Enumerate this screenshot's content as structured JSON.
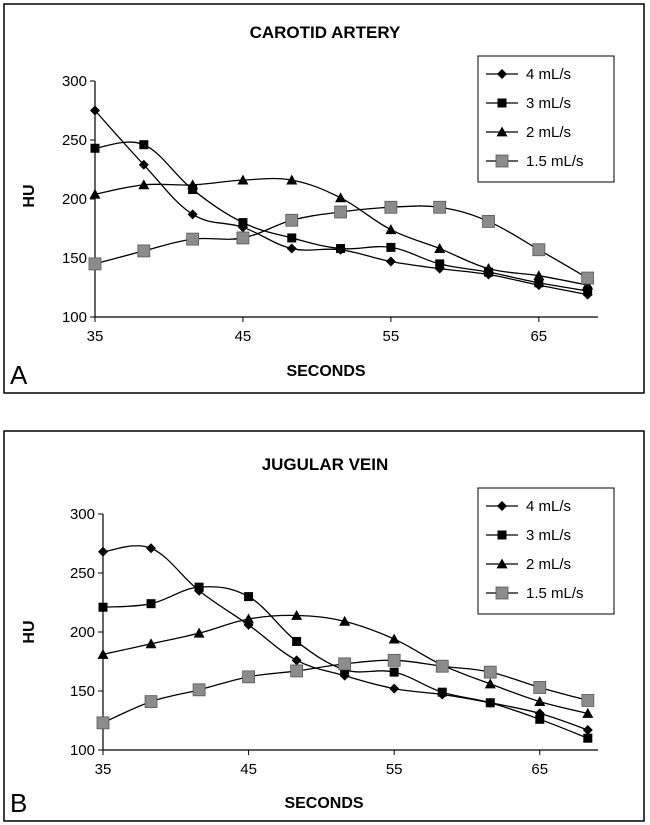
{
  "chart_data": [
    {
      "type": "line",
      "panel": "A",
      "title": "CAROTID ARTERY",
      "xlabel": "SECONDS",
      "ylabel": "HU",
      "xlim": [
        35,
        69
      ],
      "ylim": [
        100,
        300
      ],
      "xticks": [
        35,
        45,
        55,
        65
      ],
      "yticks": [
        100,
        150,
        200,
        250,
        300
      ],
      "legend_position": "top-right",
      "series": [
        {
          "name": "4 mL/s",
          "marker": "diamond",
          "color": "#000000",
          "x": [
            35,
            38.3,
            41.6,
            45,
            48.3,
            51.6,
            55,
            58.3,
            61.6,
            65,
            68.3
          ],
          "y": [
            275,
            229,
            187,
            176,
            158,
            157,
            147,
            141,
            136,
            127,
            119
          ]
        },
        {
          "name": "3 mL/s",
          "marker": "square",
          "color": "#000000",
          "x": [
            35,
            38.3,
            41.6,
            45,
            48.3,
            51.6,
            55,
            58.3,
            61.6,
            65,
            68.3
          ],
          "y": [
            243,
            246,
            208,
            180,
            167,
            158,
            159,
            145,
            138,
            129,
            122
          ]
        },
        {
          "name": "2 mL/s",
          "marker": "triangle",
          "color": "#000000",
          "x": [
            35,
            38.3,
            41.6,
            45,
            48.3,
            51.6,
            55,
            58.3,
            61.6,
            65,
            68.3
          ],
          "y": [
            204,
            212,
            212,
            216,
            216,
            201,
            174,
            158,
            141,
            135,
            127
          ]
        },
        {
          "name": "1.5 mL/s",
          "marker": "gray-square",
          "color": "#8c8c8c",
          "x": [
            35,
            38.3,
            41.6,
            45,
            48.3,
            51.6,
            55,
            58.3,
            61.6,
            65,
            68.3
          ],
          "y": [
            145,
            156,
            166,
            167,
            182,
            189,
            193,
            193,
            181,
            157,
            133
          ]
        }
      ]
    },
    {
      "type": "line",
      "panel": "B",
      "title": "JUGULAR VEIN",
      "xlabel": "SECONDS",
      "ylabel": "HU",
      "xlim": [
        35,
        69
      ],
      "ylim": [
        100,
        300
      ],
      "xticks": [
        35,
        45,
        55,
        65
      ],
      "yticks": [
        100,
        150,
        200,
        250,
        300
      ],
      "legend_position": "top-right",
      "series": [
        {
          "name": "4 mL/s",
          "marker": "diamond",
          "color": "#000000",
          "x": [
            35,
            38.3,
            41.6,
            45,
            48.3,
            51.6,
            55,
            58.3,
            61.6,
            65,
            68.3
          ],
          "y": [
            268,
            271,
            235,
            206,
            176,
            163,
            152,
            147,
            140,
            131,
            117
          ]
        },
        {
          "name": "3 mL/s",
          "marker": "square",
          "color": "#000000",
          "x": [
            35,
            38.3,
            41.6,
            45,
            48.3,
            51.6,
            55,
            58.3,
            61.6,
            65,
            68.3
          ],
          "y": [
            221,
            224,
            238,
            230,
            192,
            168,
            166,
            149,
            140,
            126,
            110
          ]
        },
        {
          "name": "2 mL/s",
          "marker": "triangle",
          "color": "#000000",
          "x": [
            35,
            38.3,
            41.6,
            45,
            48.3,
            51.6,
            55,
            58.3,
            61.6,
            65,
            68.3
          ],
          "y": [
            181,
            190,
            199,
            211,
            214,
            209,
            194,
            172,
            156,
            141,
            131
          ]
        },
        {
          "name": "1.5 mL/s",
          "marker": "gray-square",
          "color": "#8c8c8c",
          "x": [
            35,
            38.3,
            41.6,
            45,
            48.3,
            51.6,
            55,
            58.3,
            61.6,
            65,
            68.3
          ],
          "y": [
            123,
            141,
            151,
            162,
            167,
            173,
            176,
            171,
            166,
            153,
            142
          ]
        }
      ]
    }
  ]
}
